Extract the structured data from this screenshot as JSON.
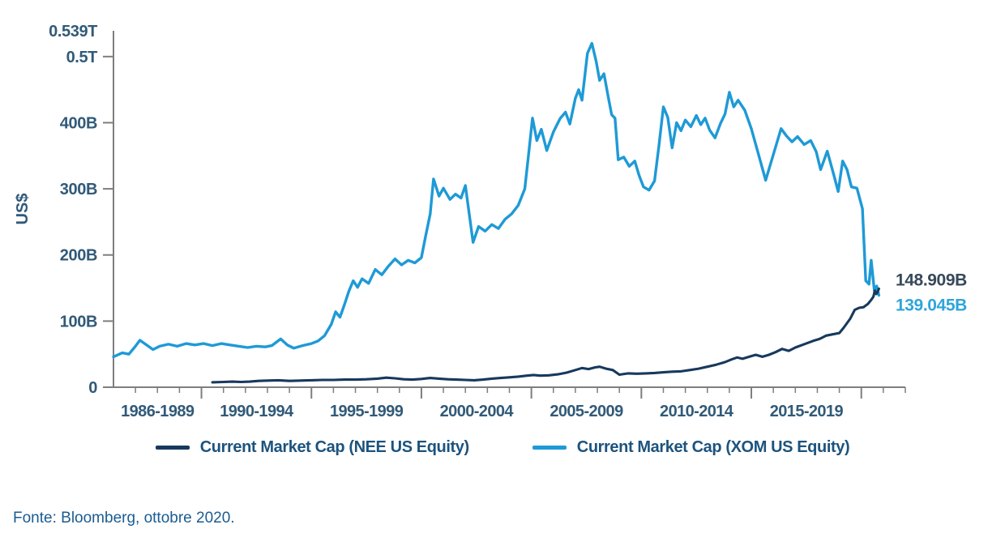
{
  "chart_data": {
    "type": "line",
    "title": "",
    "ylabel": "US$",
    "grid": false,
    "legend_position": "bottom",
    "x_axis": {
      "start_year": 1986,
      "end_year": 2022,
      "minor_tick_interval_years": 1,
      "major_tick_years": [
        1990,
        1995,
        2000,
        2005,
        2010,
        2015,
        2020
      ],
      "block_labels": [
        {
          "label": "1986-1989",
          "center_year": 1988
        },
        {
          "label": "1990-1994",
          "center_year": 1992.5
        },
        {
          "label": "1995-1999",
          "center_year": 1997.5
        },
        {
          "label": "2000-2004",
          "center_year": 2002.5
        },
        {
          "label": "2005-2009",
          "center_year": 2007.5
        },
        {
          "label": "2010-2014",
          "center_year": 2012.5
        },
        {
          "label": "2015-2019",
          "center_year": 2017.5
        }
      ]
    },
    "y_axis": {
      "unit": "US$ billions",
      "max": 539,
      "ticks": [
        {
          "value": 0,
          "label": "0"
        },
        {
          "value": 100,
          "label": "100B"
        },
        {
          "value": 200,
          "label": "200B"
        },
        {
          "value": 300,
          "label": "300B"
        },
        {
          "value": 400,
          "label": "400B"
        },
        {
          "value": 500,
          "label": "0.5T"
        }
      ],
      "top_label": {
        "value": 539,
        "label": "0.539T"
      }
    },
    "series": [
      {
        "id": "xom",
        "name": "Current Market Cap (XOM US Equity)",
        "color": "#1E9AD6",
        "line_width": 3.4,
        "end_value": 139.045,
        "end_label": "139.045B",
        "end_label_color": "#2FA5DB",
        "points": [
          [
            1986.0,
            46
          ],
          [
            1986.4,
            52
          ],
          [
            1986.7,
            50
          ],
          [
            1987.0,
            62
          ],
          [
            1987.2,
            71
          ],
          [
            1987.5,
            64
          ],
          [
            1987.8,
            57
          ],
          [
            1988.1,
            62
          ],
          [
            1988.5,
            65
          ],
          [
            1988.9,
            62
          ],
          [
            1989.3,
            66
          ],
          [
            1989.7,
            64
          ],
          [
            1990.1,
            66
          ],
          [
            1990.5,
            63
          ],
          [
            1990.9,
            66
          ],
          [
            1991.3,
            64
          ],
          [
            1991.7,
            62
          ],
          [
            1992.1,
            60
          ],
          [
            1992.5,
            62
          ],
          [
            1992.9,
            61
          ],
          [
            1993.2,
            63
          ],
          [
            1993.6,
            73
          ],
          [
            1993.9,
            64
          ],
          [
            1994.2,
            59
          ],
          [
            1994.6,
            63
          ],
          [
            1995.0,
            66
          ],
          [
            1995.3,
            70
          ],
          [
            1995.6,
            78
          ],
          [
            1995.9,
            95
          ],
          [
            1996.1,
            114
          ],
          [
            1996.3,
            106
          ],
          [
            1996.5,
            125
          ],
          [
            1996.7,
            145
          ],
          [
            1996.9,
            161
          ],
          [
            1997.1,
            151
          ],
          [
            1997.3,
            164
          ],
          [
            1997.6,
            157
          ],
          [
            1997.9,
            178
          ],
          [
            1998.2,
            170
          ],
          [
            1998.5,
            183
          ],
          [
            1998.8,
            194
          ],
          [
            1999.1,
            185
          ],
          [
            1999.4,
            192
          ],
          [
            1999.7,
            188
          ],
          [
            2000.0,
            196
          ],
          [
            2000.2,
            230
          ],
          [
            2000.4,
            262
          ],
          [
            2000.55,
            315
          ],
          [
            2000.8,
            289
          ],
          [
            2001.0,
            301
          ],
          [
            2001.3,
            284
          ],
          [
            2001.55,
            292
          ],
          [
            2001.8,
            286
          ],
          [
            2002.0,
            305
          ],
          [
            2002.35,
            219
          ],
          [
            2002.6,
            243
          ],
          [
            2002.9,
            236
          ],
          [
            2003.2,
            246
          ],
          [
            2003.5,
            240
          ],
          [
            2003.8,
            254
          ],
          [
            2004.1,
            262
          ],
          [
            2004.4,
            275
          ],
          [
            2004.7,
            300
          ],
          [
            2004.9,
            360
          ],
          [
            2005.05,
            407
          ],
          [
            2005.25,
            373
          ],
          [
            2005.45,
            390
          ],
          [
            2005.7,
            358
          ],
          [
            2006.0,
            386
          ],
          [
            2006.3,
            406
          ],
          [
            2006.55,
            416
          ],
          [
            2006.75,
            398
          ],
          [
            2007.0,
            437
          ],
          [
            2007.15,
            450
          ],
          [
            2007.3,
            434
          ],
          [
            2007.55,
            505
          ],
          [
            2007.75,
            520
          ],
          [
            2007.95,
            492
          ],
          [
            2008.1,
            464
          ],
          [
            2008.3,
            474
          ],
          [
            2008.5,
            438
          ],
          [
            2008.65,
            412
          ],
          [
            2008.8,
            407
          ],
          [
            2008.95,
            344
          ],
          [
            2009.2,
            348
          ],
          [
            2009.45,
            334
          ],
          [
            2009.7,
            342
          ],
          [
            2009.9,
            320
          ],
          [
            2010.1,
            303
          ],
          [
            2010.35,
            298
          ],
          [
            2010.6,
            312
          ],
          [
            2010.8,
            365
          ],
          [
            2011.0,
            424
          ],
          [
            2011.2,
            408
          ],
          [
            2011.4,
            362
          ],
          [
            2011.6,
            400
          ],
          [
            2011.8,
            388
          ],
          [
            2012.0,
            404
          ],
          [
            2012.25,
            394
          ],
          [
            2012.5,
            411
          ],
          [
            2012.7,
            397
          ],
          [
            2012.9,
            407
          ],
          [
            2013.1,
            389
          ],
          [
            2013.35,
            377
          ],
          [
            2013.6,
            399
          ],
          [
            2013.8,
            413
          ],
          [
            2014.0,
            446
          ],
          [
            2014.2,
            424
          ],
          [
            2014.4,
            434
          ],
          [
            2014.7,
            419
          ],
          [
            2015.0,
            391
          ],
          [
            2015.3,
            355
          ],
          [
            2015.65,
            313
          ],
          [
            2016.0,
            352
          ],
          [
            2016.35,
            391
          ],
          [
            2016.6,
            380
          ],
          [
            2016.85,
            371
          ],
          [
            2017.1,
            379
          ],
          [
            2017.4,
            367
          ],
          [
            2017.7,
            373
          ],
          [
            2017.95,
            356
          ],
          [
            2018.15,
            329
          ],
          [
            2018.45,
            357
          ],
          [
            2018.75,
            321
          ],
          [
            2018.95,
            296
          ],
          [
            2019.15,
            342
          ],
          [
            2019.35,
            329
          ],
          [
            2019.55,
            303
          ],
          [
            2019.8,
            301
          ],
          [
            2020.05,
            270
          ],
          [
            2020.2,
            161
          ],
          [
            2020.35,
            156
          ],
          [
            2020.45,
            192
          ],
          [
            2020.6,
            144
          ],
          [
            2020.7,
            153
          ],
          [
            2020.8,
            139.045
          ]
        ]
      },
      {
        "id": "nee",
        "name": "Current Market Cap (NEE US Equity)",
        "color": "#17395E",
        "line_width": 3.1,
        "end_value": 148.909,
        "end_label": "148.909B",
        "end_label_color": "#37495A",
        "points": [
          [
            1990.5,
            7.5
          ],
          [
            1991.0,
            8
          ],
          [
            1991.4,
            8.5
          ],
          [
            1991.8,
            8
          ],
          [
            1992.2,
            8.5
          ],
          [
            1992.6,
            9.5
          ],
          [
            1993.0,
            10
          ],
          [
            1993.5,
            10.5
          ],
          [
            1994.0,
            9.5
          ],
          [
            1994.5,
            10
          ],
          [
            1995.0,
            10.5
          ],
          [
            1995.5,
            11
          ],
          [
            1996.0,
            11
          ],
          [
            1996.5,
            11.5
          ],
          [
            1997.0,
            11.5
          ],
          [
            1997.5,
            12
          ],
          [
            1998.0,
            13
          ],
          [
            1998.4,
            14.5
          ],
          [
            1998.8,
            13.5
          ],
          [
            1999.2,
            12
          ],
          [
            1999.6,
            11.5
          ],
          [
            2000.0,
            12.5
          ],
          [
            2000.4,
            14
          ],
          [
            2000.8,
            13
          ],
          [
            2001.2,
            12
          ],
          [
            2001.6,
            11.5
          ],
          [
            2002.0,
            11
          ],
          [
            2002.4,
            10.5
          ],
          [
            2002.8,
            11.5
          ],
          [
            2003.2,
            13
          ],
          [
            2003.6,
            14
          ],
          [
            2004.0,
            15
          ],
          [
            2004.4,
            16
          ],
          [
            2004.8,
            17.5
          ],
          [
            2005.1,
            18.5
          ],
          [
            2005.4,
            17.5
          ],
          [
            2005.8,
            18
          ],
          [
            2006.2,
            19.5
          ],
          [
            2006.6,
            22
          ],
          [
            2007.0,
            26
          ],
          [
            2007.3,
            29
          ],
          [
            2007.6,
            27.5
          ],
          [
            2007.9,
            30
          ],
          [
            2008.1,
            31
          ],
          [
            2008.4,
            28
          ],
          [
            2008.7,
            26
          ],
          [
            2009.0,
            19
          ],
          [
            2009.4,
            21
          ],
          [
            2009.8,
            20.5
          ],
          [
            2010.2,
            21
          ],
          [
            2010.6,
            21.5
          ],
          [
            2011.0,
            22.5
          ],
          [
            2011.4,
            23.5
          ],
          [
            2011.8,
            24
          ],
          [
            2012.2,
            26
          ],
          [
            2012.6,
            28
          ],
          [
            2013.0,
            31
          ],
          [
            2013.4,
            34
          ],
          [
            2013.8,
            38
          ],
          [
            2014.1,
            42
          ],
          [
            2014.35,
            45
          ],
          [
            2014.6,
            43
          ],
          [
            2014.9,
            46
          ],
          [
            2015.2,
            49
          ],
          [
            2015.5,
            46
          ],
          [
            2015.8,
            49
          ],
          [
            2016.1,
            53
          ],
          [
            2016.4,
            58
          ],
          [
            2016.7,
            55
          ],
          [
            2017.0,
            60
          ],
          [
            2017.4,
            65
          ],
          [
            2017.8,
            70
          ],
          [
            2018.1,
            73
          ],
          [
            2018.4,
            78
          ],
          [
            2018.7,
            80
          ],
          [
            2019.0,
            82
          ],
          [
            2019.2,
            90
          ],
          [
            2019.5,
            104
          ],
          [
            2019.7,
            117
          ],
          [
            2019.9,
            120
          ],
          [
            2020.1,
            121
          ],
          [
            2020.3,
            126
          ],
          [
            2020.45,
            132
          ],
          [
            2020.55,
            137
          ],
          [
            2020.62,
            146
          ],
          [
            2020.68,
            141
          ],
          [
            2020.74,
            144
          ],
          [
            2020.8,
            148.909
          ]
        ]
      }
    ]
  },
  "legend": {
    "items": [
      {
        "label": "Current Market Cap (NEE US Equity)",
        "color": "#17395E"
      },
      {
        "label": "Current Market Cap (XOM US Equity)",
        "color": "#1E9AD6"
      }
    ]
  },
  "footer": {
    "source_text": "Fonte: Bloomberg, ottobre 2020."
  },
  "colors": {
    "background": "#FFFFFF",
    "axis": "#7E7E7E",
    "tick_label": "#315A78",
    "legend_text": "#1C537E",
    "source_text": "#1A5C92"
  }
}
